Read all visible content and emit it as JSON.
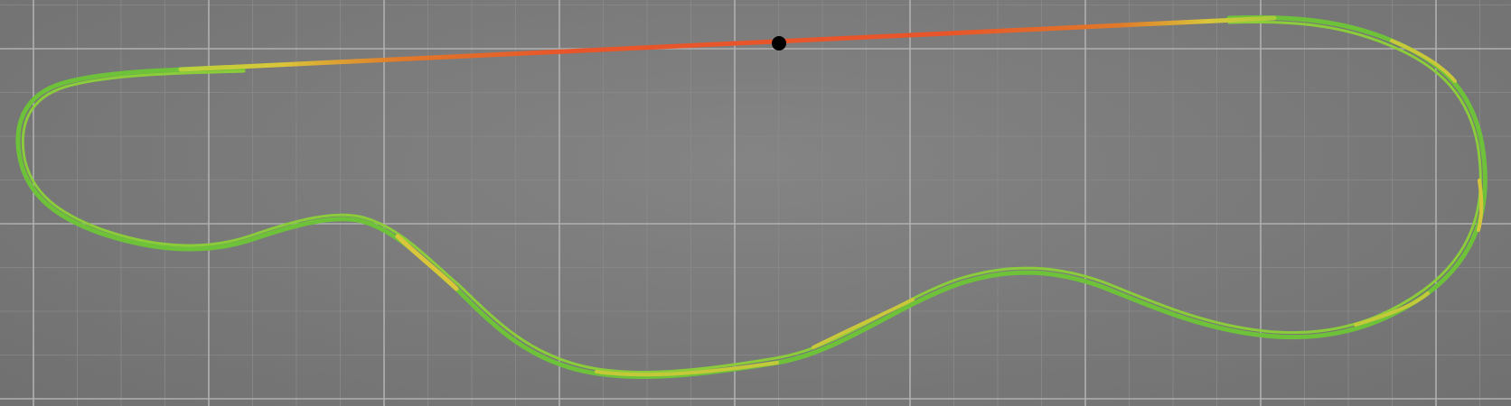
{
  "scene": {
    "background_color": "#7a7a7a",
    "grid": {
      "enabled": true,
      "minor_color": "#8a8a8a",
      "major_color": "#b0b0b0"
    },
    "track": {
      "name": "racing-line",
      "speed_color_scale": [
        "#e8552a",
        "#e07a2a",
        "#d9c63a",
        "#a6cc3a",
        "#6ec23a"
      ],
      "low_speed_color": "#6ec23a",
      "high_speed_color": "#e8552a"
    },
    "marker": {
      "name": "car-position-marker",
      "color": "#000000"
    }
  }
}
